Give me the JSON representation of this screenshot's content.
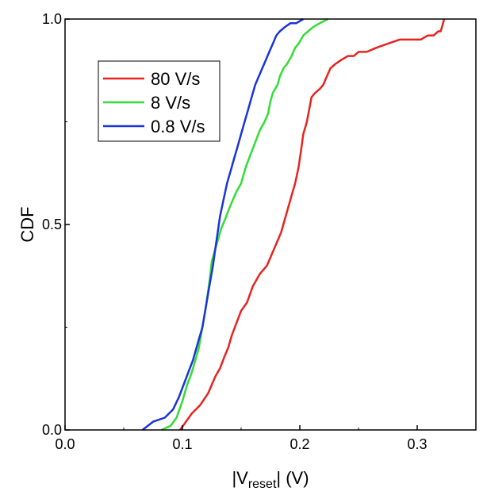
{
  "chart_data": {
    "type": "line",
    "title": "",
    "xlabel": {
      "prefix": "|V",
      "sub": "reset",
      "suffix": "| (V)"
    },
    "ylabel": "CDF",
    "xlim": [
      0.0,
      0.35
    ],
    "ylim": [
      0.0,
      1.0
    ],
    "xticks": [
      {
        "value": 0.0,
        "label": "0.0"
      },
      {
        "value": 0.1,
        "label": "0.1"
      },
      {
        "value": 0.2,
        "label": "0.2"
      },
      {
        "value": 0.3,
        "label": "0.3"
      }
    ],
    "yticks": [
      {
        "value": 0.0,
        "label": "0.0"
      },
      {
        "value": 0.5,
        "label": "0.5"
      },
      {
        "value": 1.0,
        "label": "1.0"
      }
    ],
    "grid": false,
    "legend_position": "top-left",
    "series": [
      {
        "name": "80 V/s",
        "color": "#e8231f",
        "x": [
          0.098,
          0.108,
          0.115,
          0.122,
          0.128,
          0.132,
          0.136,
          0.139,
          0.142,
          0.146,
          0.15,
          0.155,
          0.16,
          0.166,
          0.172,
          0.178,
          0.184,
          0.188,
          0.193,
          0.196,
          0.199,
          0.201,
          0.203,
          0.206,
          0.208,
          0.21,
          0.213,
          0.217,
          0.22,
          0.223,
          0.226,
          0.23,
          0.235,
          0.241,
          0.246,
          0.25,
          0.257,
          0.265,
          0.275,
          0.285,
          0.292,
          0.298,
          0.303,
          0.309,
          0.314,
          0.318,
          0.32,
          0.321,
          0.322,
          0.323
        ],
        "y": [
          0.0,
          0.04,
          0.06,
          0.09,
          0.13,
          0.15,
          0.18,
          0.2,
          0.23,
          0.26,
          0.29,
          0.31,
          0.35,
          0.38,
          0.4,
          0.44,
          0.48,
          0.52,
          0.57,
          0.6,
          0.64,
          0.68,
          0.72,
          0.75,
          0.78,
          0.81,
          0.82,
          0.83,
          0.84,
          0.86,
          0.88,
          0.89,
          0.9,
          0.91,
          0.91,
          0.92,
          0.92,
          0.93,
          0.94,
          0.95,
          0.95,
          0.95,
          0.95,
          0.96,
          0.96,
          0.97,
          0.97,
          0.98,
          0.99,
          1.0
        ]
      },
      {
        "name": "8 V/s",
        "color": "#33dd33",
        "x": [
          0.082,
          0.09,
          0.095,
          0.1,
          0.104,
          0.108,
          0.111,
          0.114,
          0.117,
          0.12,
          0.123,
          0.125,
          0.128,
          0.13,
          0.133,
          0.136,
          0.14,
          0.143,
          0.146,
          0.15,
          0.154,
          0.158,
          0.162,
          0.166,
          0.17,
          0.173,
          0.175,
          0.177,
          0.179,
          0.181,
          0.183,
          0.186,
          0.189,
          0.193,
          0.196,
          0.199,
          0.203,
          0.207,
          0.211,
          0.217,
          0.224
        ],
        "y": [
          0.0,
          0.01,
          0.03,
          0.07,
          0.11,
          0.14,
          0.17,
          0.2,
          0.25,
          0.3,
          0.36,
          0.41,
          0.44,
          0.46,
          0.49,
          0.51,
          0.54,
          0.56,
          0.58,
          0.6,
          0.64,
          0.67,
          0.7,
          0.73,
          0.75,
          0.77,
          0.8,
          0.82,
          0.83,
          0.84,
          0.86,
          0.88,
          0.89,
          0.91,
          0.93,
          0.94,
          0.96,
          0.97,
          0.98,
          0.99,
          1.0
        ]
      },
      {
        "name": "0.8 V/s",
        "color": "#1a33dd",
        "x": [
          0.066,
          0.075,
          0.085,
          0.092,
          0.097,
          0.101,
          0.105,
          0.109,
          0.113,
          0.117,
          0.12,
          0.123,
          0.126,
          0.128,
          0.13,
          0.132,
          0.135,
          0.138,
          0.141,
          0.144,
          0.147,
          0.15,
          0.153,
          0.156,
          0.159,
          0.162,
          0.165,
          0.168,
          0.171,
          0.174,
          0.177,
          0.18,
          0.183,
          0.187,
          0.192,
          0.197,
          0.203
        ],
        "y": [
          0.0,
          0.02,
          0.03,
          0.05,
          0.08,
          0.11,
          0.14,
          0.17,
          0.21,
          0.25,
          0.3,
          0.35,
          0.4,
          0.44,
          0.48,
          0.52,
          0.56,
          0.6,
          0.63,
          0.66,
          0.69,
          0.72,
          0.75,
          0.78,
          0.81,
          0.84,
          0.86,
          0.88,
          0.9,
          0.92,
          0.94,
          0.96,
          0.97,
          0.98,
          0.99,
          0.99,
          1.0
        ]
      }
    ]
  }
}
